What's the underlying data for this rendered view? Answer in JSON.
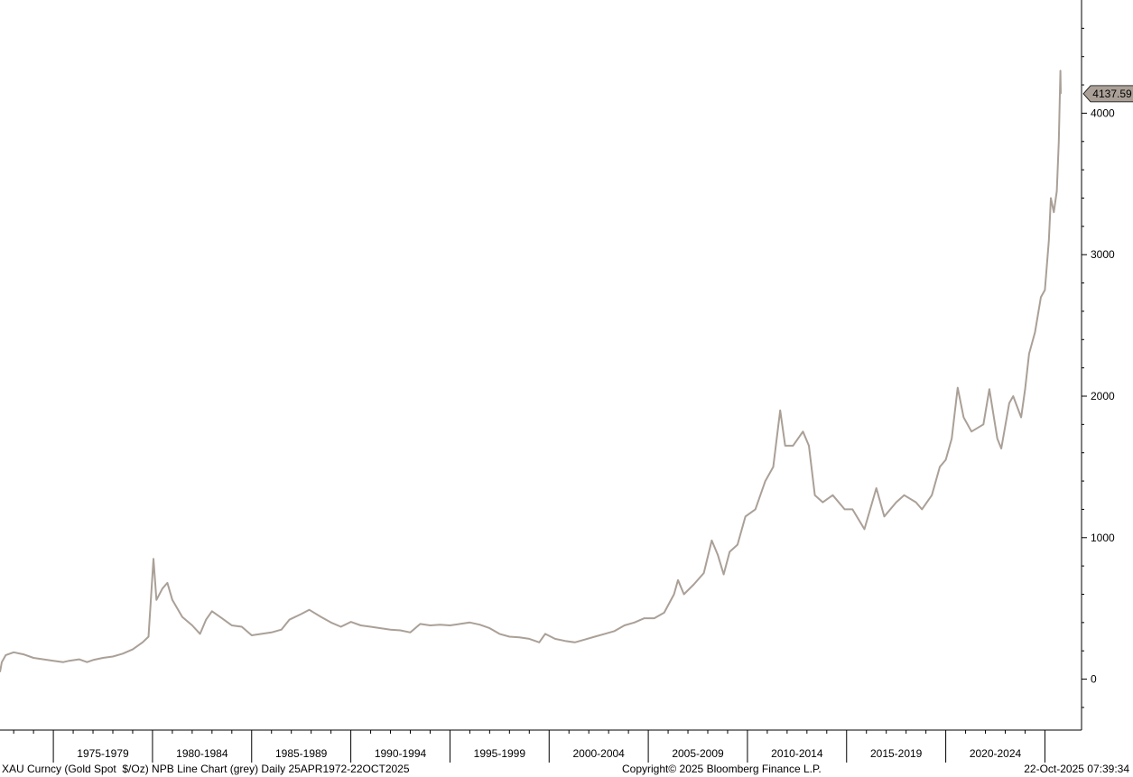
{
  "chart_data": {
    "type": "line",
    "title": "",
    "xlabel": "",
    "ylabel": "",
    "x_period_labels": [
      "1975-1979",
      "1980-1984",
      "1985-1989",
      "1990-1994",
      "1995-1999",
      "2000-2004",
      "2005-2009",
      "2010-2014",
      "2015-2019",
      "2020-2024"
    ],
    "y_ticks": [
      0,
      1000,
      2000,
      3000,
      4000
    ],
    "y_tick_labels": [
      "0",
      "1000",
      "2000",
      "3000",
      "4000"
    ],
    "ylim": [
      -360,
      4800
    ],
    "xlim": [
      1972.31,
      2025.8
    ],
    "grid": false,
    "line_color": "#aaa097",
    "last_value": 4137.59,
    "last_value_label": "4137.59",
    "series": [
      {
        "points": [
          [
            1972.31,
            50
          ],
          [
            1972.4,
            120
          ],
          [
            1972.6,
            170
          ],
          [
            1973.0,
            190
          ],
          [
            1973.5,
            175
          ],
          [
            1974.0,
            150
          ],
          [
            1974.5,
            140
          ],
          [
            1975.0,
            130
          ],
          [
            1975.5,
            120
          ],
          [
            1975.8,
            130
          ],
          [
            1976.3,
            140
          ],
          [
            1976.7,
            120
          ],
          [
            1977.0,
            135
          ],
          [
            1977.5,
            150
          ],
          [
            1978.0,
            160
          ],
          [
            1978.5,
            180
          ],
          [
            1979.0,
            210
          ],
          [
            1979.5,
            260
          ],
          [
            1979.8,
            300
          ],
          [
            1980.05,
            850
          ],
          [
            1980.2,
            560
          ],
          [
            1980.5,
            640
          ],
          [
            1980.75,
            680
          ],
          [
            1981.0,
            560
          ],
          [
            1981.5,
            440
          ],
          [
            1982.0,
            380
          ],
          [
            1982.4,
            320
          ],
          [
            1982.7,
            420
          ],
          [
            1983.0,
            480
          ],
          [
            1983.5,
            430
          ],
          [
            1984.0,
            380
          ],
          [
            1984.5,
            370
          ],
          [
            1985.0,
            310
          ],
          [
            1985.5,
            320
          ],
          [
            1986.0,
            330
          ],
          [
            1986.5,
            350
          ],
          [
            1986.9,
            420
          ],
          [
            1987.5,
            460
          ],
          [
            1987.9,
            490
          ],
          [
            1988.5,
            440
          ],
          [
            1989.0,
            400
          ],
          [
            1989.5,
            370
          ],
          [
            1990.0,
            405
          ],
          [
            1990.5,
            380
          ],
          [
            1991.0,
            370
          ],
          [
            1991.5,
            360
          ],
          [
            1992.0,
            350
          ],
          [
            1992.5,
            345
          ],
          [
            1993.0,
            330
          ],
          [
            1993.5,
            390
          ],
          [
            1994.0,
            380
          ],
          [
            1994.5,
            385
          ],
          [
            1995.0,
            380
          ],
          [
            1995.5,
            390
          ],
          [
            1996.0,
            400
          ],
          [
            1996.5,
            385
          ],
          [
            1997.0,
            360
          ],
          [
            1997.5,
            320
          ],
          [
            1998.0,
            300
          ],
          [
            1998.5,
            295
          ],
          [
            1999.0,
            285
          ],
          [
            1999.5,
            260
          ],
          [
            1999.8,
            320
          ],
          [
            2000.3,
            285
          ],
          [
            2000.8,
            270
          ],
          [
            2001.3,
            260
          ],
          [
            2001.8,
            280
          ],
          [
            2002.3,
            300
          ],
          [
            2002.8,
            320
          ],
          [
            2003.3,
            340
          ],
          [
            2003.8,
            380
          ],
          [
            2004.3,
            400
          ],
          [
            2004.8,
            430
          ],
          [
            2005.3,
            430
          ],
          [
            2005.8,
            470
          ],
          [
            2006.3,
            600
          ],
          [
            2006.5,
            700
          ],
          [
            2006.8,
            600
          ],
          [
            2007.3,
            670
          ],
          [
            2007.8,
            750
          ],
          [
            2008.2,
            980
          ],
          [
            2008.5,
            880
          ],
          [
            2008.8,
            740
          ],
          [
            2009.1,
            900
          ],
          [
            2009.5,
            950
          ],
          [
            2009.9,
            1150
          ],
          [
            2010.4,
            1200
          ],
          [
            2010.9,
            1400
          ],
          [
            2011.3,
            1500
          ],
          [
            2011.65,
            1900
          ],
          [
            2011.9,
            1650
          ],
          [
            2012.3,
            1650
          ],
          [
            2012.8,
            1750
          ],
          [
            2013.1,
            1650
          ],
          [
            2013.4,
            1300
          ],
          [
            2013.8,
            1250
          ],
          [
            2014.3,
            1300
          ],
          [
            2014.9,
            1200
          ],
          [
            2015.3,
            1200
          ],
          [
            2015.9,
            1060
          ],
          [
            2016.5,
            1350
          ],
          [
            2016.9,
            1150
          ],
          [
            2017.5,
            1250
          ],
          [
            2017.9,
            1300
          ],
          [
            2018.5,
            1250
          ],
          [
            2018.8,
            1200
          ],
          [
            2019.3,
            1300
          ],
          [
            2019.7,
            1500
          ],
          [
            2020.0,
            1550
          ],
          [
            2020.3,
            1700
          ],
          [
            2020.6,
            2060
          ],
          [
            2020.9,
            1850
          ],
          [
            2021.3,
            1750
          ],
          [
            2021.9,
            1800
          ],
          [
            2022.2,
            2050
          ],
          [
            2022.6,
            1700
          ],
          [
            2022.8,
            1630
          ],
          [
            2023.2,
            1950
          ],
          [
            2023.4,
            2000
          ],
          [
            2023.8,
            1850
          ],
          [
            2024.0,
            2050
          ],
          [
            2024.2,
            2300
          ],
          [
            2024.5,
            2450
          ],
          [
            2024.8,
            2700
          ],
          [
            2025.0,
            2750
          ],
          [
            2025.2,
            3100
          ],
          [
            2025.3,
            3400
          ],
          [
            2025.45,
            3300
          ],
          [
            2025.6,
            3450
          ],
          [
            2025.7,
            3800
          ],
          [
            2025.78,
            4300
          ],
          [
            2025.8,
            4137.59
          ]
        ]
      }
    ]
  },
  "footer": {
    "left": "XAU Curncy (Gold Spot  $/Oz) NPB Line Chart (grey) Daily 25APR1972-22OCT2025",
    "center": "Copyright© 2025 Bloomberg Finance L.P.",
    "right": "22-Oct-2025 07:39:34"
  }
}
